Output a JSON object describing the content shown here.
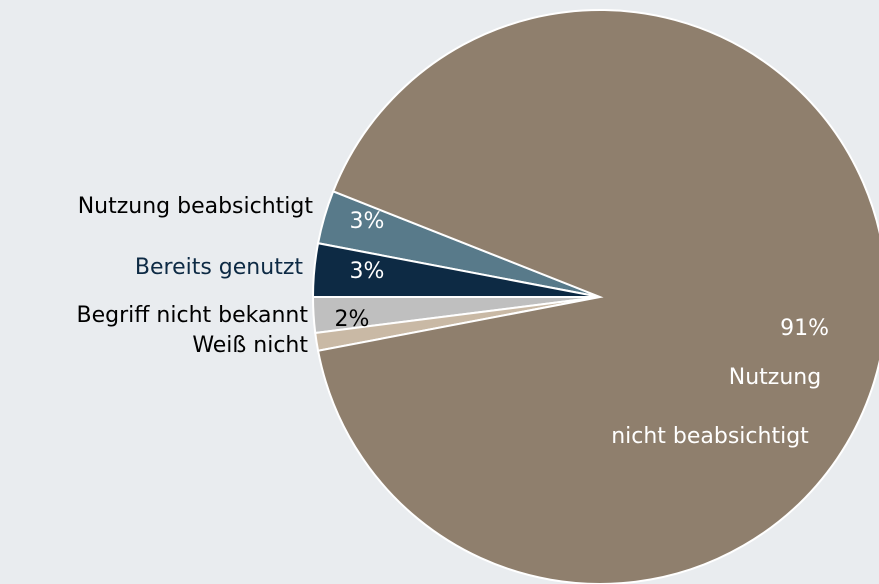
{
  "chart_data": {
    "type": "pie",
    "categories": [
      "Nutzung beabsichtigt",
      "Bereits genutzt",
      "Begriff nicht bekannt",
      "Weiß nicht",
      "Nutzung nicht beabsichtigt"
    ],
    "values": [
      3,
      3,
      2,
      1,
      91
    ],
    "value_labels": [
      "3%",
      "3%",
      "2%",
      null,
      "91%"
    ],
    "colors": [
      "#587a8a",
      "#0d2a44",
      "#bfbfbf",
      "#c9b9a5",
      "#8f7f6d"
    ],
    "label_colors": [
      "#000000",
      "#0d2a44",
      "#000000",
      "#000000",
      "#ffffff"
    ],
    "value_label_colors": [
      "#ffffff",
      "#ffffff",
      "#000000",
      "#000000",
      "#ffffff"
    ]
  }
}
